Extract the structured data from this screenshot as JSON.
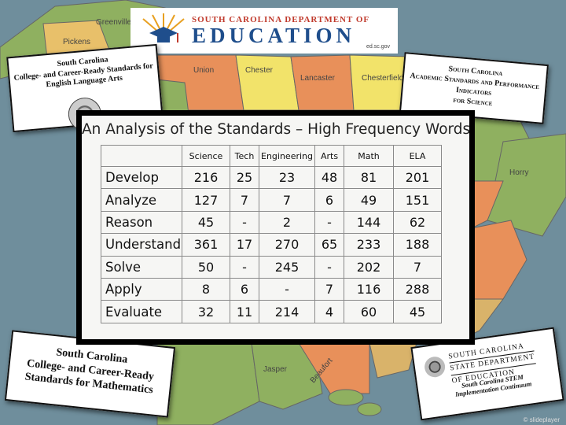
{
  "logo": {
    "org_line": "SOUTH CAROLINA DEPARTMENT OF",
    "main_word": "EDUCATION",
    "url": "ed.sc.gov"
  },
  "map_labels": [
    "Greenville",
    "Pickens",
    "Union",
    "Chester",
    "Lancaster",
    "Chesterfield",
    "Horry",
    "Jasper",
    "Beaufort"
  ],
  "docs": {
    "ela": [
      "South Carolina",
      "College- and Career-Ready Standards for",
      "English Language Arts"
    ],
    "performance": [
      "South Carolina",
      "Academic Standards and Performance",
      "Indicators",
      "for Science"
    ],
    "math": [
      "South Carolina",
      "College- and Career-Ready",
      "Standards for Mathematics"
    ],
    "stem": {
      "dept_lines": [
        "SOUTH CAROLINA",
        "STATE DEPARTMENT",
        "OF EDUCATION"
      ],
      "title_lines": [
        "South Carolina STEM",
        "Implementation Continuum"
      ]
    }
  },
  "panel": {
    "title": "An Analysis of the Standards – High Frequency Words"
  },
  "table": {
    "headers": [
      "",
      "Science",
      "Tech",
      "Engineering",
      "Arts",
      "Math",
      "ELA"
    ],
    "rows": [
      [
        "Develop",
        "216",
        "25",
        "23",
        "48",
        "81",
        "201"
      ],
      [
        "Analyze",
        "127",
        "7",
        "7",
        "6",
        "49",
        "151"
      ],
      [
        "Reason",
        "45",
        "-",
        "2",
        "-",
        "144",
        "62"
      ],
      [
        "Understand",
        "361",
        "17",
        "270",
        "65",
        "233",
        "188"
      ],
      [
        "Solve",
        "50",
        "-",
        "245",
        "-",
        "202",
        "7"
      ],
      [
        "Apply",
        "8",
        "6",
        "-",
        "7",
        "116",
        "288"
      ],
      [
        "Evaluate",
        "32",
        "11",
        "214",
        "4",
        "60",
        "45"
      ]
    ]
  },
  "colors": {
    "county_green": "#8fb060",
    "county_orange": "#e8905a",
    "county_yellow": "#f2e36a",
    "county_tan": "#d9b36a",
    "logo_red": "#c0392b",
    "logo_blue": "#1f4e8c"
  }
}
